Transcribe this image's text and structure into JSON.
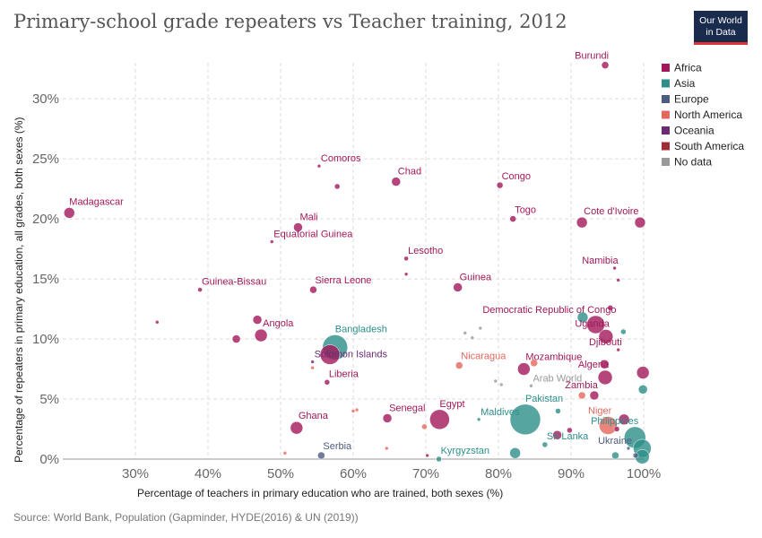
{
  "header": {
    "title": "Primary-school grade repeaters vs Teacher training, 2012",
    "logo_line1": "Our World",
    "logo_line2": "in Data"
  },
  "footer": {
    "source": "Source: World Bank, Population (Gapminder, HYDE(2016) & UN (2019))"
  },
  "colors": {
    "Africa": "#a2185a",
    "Asia": "#2d8e8a",
    "Europe": "#4c5c7e",
    "North America": "#e4675d",
    "Oceania": "#6a2b72",
    "South America": "#a02c37",
    "No data": "#999999",
    "grid": "#dddddd"
  },
  "chart_data": {
    "type": "scatter",
    "title": "Primary-school grade repeaters vs Teacher training, 2012",
    "xlabel": "Percentage of teachers in primary education who are trained, both sexes (%)",
    "ylabel": "Percentage of repeaters in primary education, all grades, both sexes (%)",
    "xlim": [
      20,
      100
    ],
    "ylim": [
      0,
      33
    ],
    "x_ticks": [
      "30%",
      "40%",
      "50%",
      "60%",
      "70%",
      "80%",
      "90%",
      "100%"
    ],
    "y_ticks": [
      "0%",
      "5%",
      "10%",
      "15%",
      "20%",
      "25%",
      "30%"
    ],
    "legend": [
      "Africa",
      "Asia",
      "Europe",
      "North America",
      "Oceania",
      "South America",
      "No data"
    ],
    "points": [
      {
        "label": "Burundi",
        "x": 94.7,
        "y": 32.8,
        "r": 4,
        "region": "Africa"
      },
      {
        "label": "Madagascar",
        "x": 20.9,
        "y": 20.5,
        "r": 6,
        "region": "Africa"
      },
      {
        "label": "Comoros",
        "x": 55.3,
        "y": 24.4,
        "r": 2,
        "region": "Africa"
      },
      {
        "label": "",
        "x": 57.8,
        "y": 22.7,
        "r": 3,
        "region": "Africa"
      },
      {
        "label": "Chad",
        "x": 65.9,
        "y": 23.1,
        "r": 5,
        "region": "Africa"
      },
      {
        "label": "Congo",
        "x": 80.2,
        "y": 22.8,
        "r": 3.5,
        "region": "Africa"
      },
      {
        "label": "Togo",
        "x": 82.0,
        "y": 20.0,
        "r": 3.5,
        "region": "Africa"
      },
      {
        "label": "Cote d'Ivoire",
        "x": 91.5,
        "y": 19.7,
        "r": 6,
        "region": "Africa"
      },
      {
        "label": "",
        "x": 99.5,
        "y": 19.7,
        "r": 6,
        "region": "Africa"
      },
      {
        "label": "Mali",
        "x": 52.4,
        "y": 19.3,
        "r": 5,
        "region": "Africa"
      },
      {
        "label": "Equatorial Guinea",
        "x": 48.8,
        "y": 18.1,
        "r": 2,
        "region": "Africa"
      },
      {
        "label": "Lesotho",
        "x": 67.3,
        "y": 16.7,
        "r": 2.5,
        "region": "Africa"
      },
      {
        "label": "",
        "x": 67.3,
        "y": 15.4,
        "r": 2,
        "region": "Africa"
      },
      {
        "label": "Namibia",
        "x": 96.0,
        "y": 15.9,
        "r": 2,
        "region": "Africa"
      },
      {
        "label": "",
        "x": 96.5,
        "y": 14.9,
        "r": 2,
        "region": "Africa"
      },
      {
        "label": "Guinea-Bissau",
        "x": 38.9,
        "y": 14.1,
        "r": 2.5,
        "region": "Africa"
      },
      {
        "label": "Sierra Leone",
        "x": 54.5,
        "y": 14.1,
        "r": 4,
        "region": "Africa"
      },
      {
        "label": "Guinea",
        "x": 74.4,
        "y": 14.3,
        "r": 5,
        "region": "Africa"
      },
      {
        "label": "Democratic Republic of Congo",
        "x": 93.4,
        "y": 11.2,
        "r": 10,
        "region": "Africa"
      },
      {
        "label": "",
        "x": 95.4,
        "y": 12.6,
        "r": 3,
        "region": "Africa"
      },
      {
        "label": "",
        "x": 33.0,
        "y": 11.4,
        "r": 2,
        "region": "Africa"
      },
      {
        "label": "",
        "x": 46.8,
        "y": 11.6,
        "r": 5,
        "region": "Africa"
      },
      {
        "label": "Angola",
        "x": 47.3,
        "y": 10.3,
        "r": 7,
        "region": "Africa"
      },
      {
        "label": "",
        "x": 43.9,
        "y": 10.0,
        "r": 4.5,
        "region": "Africa"
      },
      {
        "label": "Bangladesh",
        "x": 57.5,
        "y": 9.3,
        "r": 14,
        "region": "Asia"
      },
      {
        "label": "Solomon Islands",
        "x": 54.4,
        "y": 8.1,
        "r": 2,
        "region": "Oceania"
      },
      {
        "label": "",
        "x": 56.8,
        "y": 8.7,
        "r": 11,
        "region": "Africa"
      },
      {
        "label": "",
        "x": 54.4,
        "y": 7.6,
        "r": 2,
        "region": "North America"
      },
      {
        "label": "Uganda",
        "x": 94.8,
        "y": 10.2,
        "r": 8,
        "region": "Africa"
      },
      {
        "label": "",
        "x": 91.6,
        "y": 11.8,
        "r": 6,
        "region": "Asia"
      },
      {
        "label": "",
        "x": 97.2,
        "y": 10.6,
        "r": 3,
        "region": "Asia"
      },
      {
        "label": "Djibouti",
        "x": 96.5,
        "y": 9.1,
        "r": 2,
        "region": "Africa"
      },
      {
        "label": "Liberia",
        "x": 56.4,
        "y": 6.4,
        "r": 3,
        "region": "Africa"
      },
      {
        "label": "Nicaragua",
        "x": 74.6,
        "y": 7.8,
        "r": 4,
        "region": "North America"
      },
      {
        "label": "Mozambique",
        "x": 83.5,
        "y": 7.5,
        "r": 7,
        "region": "Africa"
      },
      {
        "label": "",
        "x": 84.9,
        "y": 8.0,
        "r": 4,
        "region": "North America"
      },
      {
        "label": "Algeria",
        "x": 94.7,
        "y": 6.8,
        "r": 8,
        "region": "Africa"
      },
      {
        "label": "",
        "x": 94.6,
        "y": 7.9,
        "r": 5,
        "region": "Africa"
      },
      {
        "label": "",
        "x": 99.9,
        "y": 7.2,
        "r": 7,
        "region": "Africa"
      },
      {
        "label": "Arab World",
        "x": 84.5,
        "y": 6.1,
        "r": 2,
        "region": "No data"
      },
      {
        "label": "",
        "x": 75.4,
        "y": 10.5,
        "r": 2,
        "region": "No data"
      },
      {
        "label": "",
        "x": 76.4,
        "y": 10.1,
        "r": 2,
        "region": "No data"
      },
      {
        "label": "",
        "x": 77.5,
        "y": 10.9,
        "r": 2,
        "region": "No data"
      },
      {
        "label": "",
        "x": 79.6,
        "y": 6.5,
        "r": 2,
        "region": "No data"
      },
      {
        "label": "",
        "x": 80.4,
        "y": 6.2,
        "r": 2,
        "region": "No data"
      },
      {
        "label": "Zambia",
        "x": 93.2,
        "y": 5.3,
        "r": 5,
        "region": "Africa"
      },
      {
        "label": "",
        "x": 91.5,
        "y": 5.3,
        "r": 4,
        "region": "North America"
      },
      {
        "label": "",
        "x": 99.9,
        "y": 5.8,
        "r": 5,
        "region": "Asia"
      },
      {
        "label": "Pakistan",
        "x": 83.7,
        "y": 3.3,
        "r": 17,
        "region": "Asia"
      },
      {
        "label": "Egypt",
        "x": 71.9,
        "y": 3.3,
        "r": 11,
        "region": "Africa"
      },
      {
        "label": "Senegal",
        "x": 64.7,
        "y": 3.4,
        "r": 5,
        "region": "Africa"
      },
      {
        "label": "Ghana",
        "x": 52.2,
        "y": 2.6,
        "r": 7,
        "region": "Africa"
      },
      {
        "label": "",
        "x": 60.0,
        "y": 4.0,
        "r": 2,
        "region": "North America"
      },
      {
        "label": "",
        "x": 60.5,
        "y": 4.1,
        "r": 2,
        "region": "North America"
      },
      {
        "label": "",
        "x": 69.8,
        "y": 2.7,
        "r": 3,
        "region": "North America"
      },
      {
        "label": "Maldives",
        "x": 77.3,
        "y": 3.3,
        "r": 2,
        "region": "Asia"
      },
      {
        "label": "",
        "x": 88.2,
        "y": 4.0,
        "r": 3,
        "region": "Asia"
      },
      {
        "label": "Niger",
        "x": 95.1,
        "y": 2.8,
        "r": 10,
        "region": "North America"
      },
      {
        "label": "",
        "x": 97.3,
        "y": 3.3,
        "r": 6,
        "region": "Africa"
      },
      {
        "label": "",
        "x": 96.3,
        "y": 2.5,
        "r": 3,
        "region": "Africa"
      },
      {
        "label": "Philippines",
        "x": 98.8,
        "y": 1.8,
        "r": 12,
        "region": "Asia"
      },
      {
        "label": "Sri Lanka",
        "x": 86.4,
        "y": 1.2,
        "r": 3,
        "region": "Asia"
      },
      {
        "label": "",
        "x": 82.3,
        "y": 0.5,
        "r": 6,
        "region": "Asia"
      },
      {
        "label": "",
        "x": 88.1,
        "y": 2.0,
        "r": 5,
        "region": "Africa"
      },
      {
        "label": "",
        "x": 89.8,
        "y": 2.4,
        "r": 3,
        "region": "Africa"
      },
      {
        "label": "Serbia",
        "x": 55.6,
        "y": 0.3,
        "r": 4,
        "region": "Europe"
      },
      {
        "label": "",
        "x": 50.6,
        "y": 0.5,
        "r": 2,
        "region": "North America"
      },
      {
        "label": "",
        "x": 64.6,
        "y": 0.9,
        "r": 2,
        "region": "North America"
      },
      {
        "label": "",
        "x": 70.2,
        "y": 0.3,
        "r": 2,
        "region": "South America"
      },
      {
        "label": "Kyrgyzstan",
        "x": 71.8,
        "y": 0.0,
        "r": 3,
        "region": "Asia"
      },
      {
        "label": "Ukraine",
        "x": 97.9,
        "y": 0.9,
        "r": 2,
        "region": "Europe"
      },
      {
        "label": "",
        "x": 99.8,
        "y": 0.9,
        "r": 10,
        "region": "Asia"
      },
      {
        "label": "",
        "x": 99.8,
        "y": 0.2,
        "r": 8,
        "region": "Asia"
      },
      {
        "label": "",
        "x": 96.1,
        "y": 0.3,
        "r": 4,
        "region": "Asia"
      },
      {
        "label": "",
        "x": 98.9,
        "y": 0.3,
        "r": 3,
        "region": "Europe"
      }
    ]
  }
}
